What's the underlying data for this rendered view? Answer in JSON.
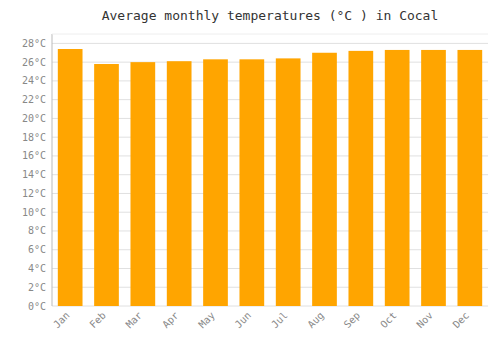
{
  "chart_data": {
    "type": "bar",
    "title": "Average monthly temperatures (°C ) in Cocal",
    "categories": [
      "Jan",
      "Feb",
      "Mar",
      "Apr",
      "May",
      "Jun",
      "Jul",
      "Aug",
      "Sep",
      "Oct",
      "Nov",
      "Dec"
    ],
    "values": [
      27.4,
      25.8,
      26.0,
      26.1,
      26.3,
      26.3,
      26.4,
      27.0,
      27.2,
      27.3,
      27.3,
      27.3
    ],
    "color": "#FFA500",
    "ylim": [
      0,
      29
    ],
    "yticks": [
      {
        "value": 0,
        "label": "0°C"
      },
      {
        "value": 2,
        "label": "2°C"
      },
      {
        "value": 4,
        "label": "4°C"
      },
      {
        "value": 6,
        "label": "6°C"
      },
      {
        "value": 8,
        "label": "8°C"
      },
      {
        "value": 10,
        "label": "10°C"
      },
      {
        "value": 12,
        "label": "12°C"
      },
      {
        "value": 14,
        "label": "14°C"
      },
      {
        "value": 16,
        "label": "16°C"
      },
      {
        "value": 18,
        "label": "18°C"
      },
      {
        "value": 20,
        "label": "20°C"
      },
      {
        "value": 22,
        "label": "22°C"
      },
      {
        "value": 24,
        "label": "24°C"
      },
      {
        "value": 26,
        "label": "26°C"
      },
      {
        "value": 28,
        "label": "28°C"
      }
    ],
    "grid": true
  }
}
